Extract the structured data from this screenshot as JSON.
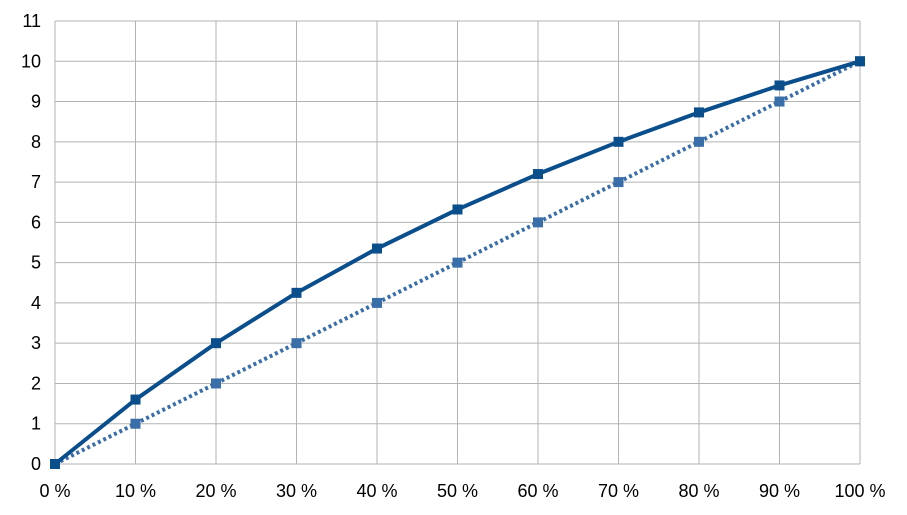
{
  "chart_data": {
    "type": "line",
    "title": "",
    "xlabel": "",
    "ylabel": "",
    "x": [
      0,
      10,
      20,
      30,
      40,
      50,
      60,
      70,
      80,
      90,
      100
    ],
    "x_tick_labels": [
      "0 %",
      "10 %",
      "20 %",
      "30 %",
      "40 %",
      "50 %",
      "60 %",
      "70 %",
      "80 %",
      "90 %",
      "100 %"
    ],
    "xlim": [
      0,
      100
    ],
    "ylim": [
      0,
      11
    ],
    "y_ticks": [
      0,
      1,
      2,
      3,
      4,
      5,
      6,
      7,
      8,
      9,
      10,
      11
    ],
    "grid": true,
    "legend": "none",
    "series": [
      {
        "style": "solid",
        "marker": "square",
        "color": "#0b4e8c",
        "values": [
          0,
          1.6,
          3.0,
          4.25,
          5.35,
          6.32,
          7.2,
          8.0,
          8.73,
          9.4,
          10.0
        ]
      },
      {
        "style": "dotted",
        "marker": "square",
        "color": "#3a6ea8",
        "values": [
          0,
          1,
          2,
          3,
          4,
          5,
          6,
          7,
          8,
          9,
          10
        ]
      }
    ]
  }
}
